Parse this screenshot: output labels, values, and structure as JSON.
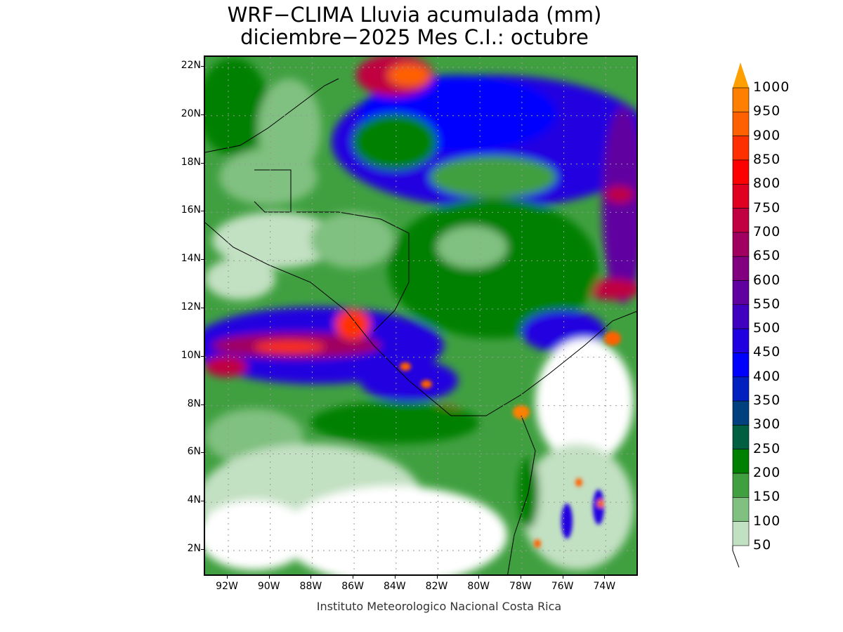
{
  "title": {
    "line1": "WRF−CLIMA Lluvia acumulada (mm)",
    "line2": "diciembre−2025 Mes C.I.: octubre"
  },
  "footer": "Instituto Meteorologico Nacional Costa Rica",
  "axes": {
    "lat_labels": [
      "22N",
      "20N",
      "18N",
      "16N",
      "14N",
      "12N",
      "10N",
      "8N",
      "6N",
      "4N",
      "2N"
    ],
    "lon_labels": [
      "92W",
      "90W",
      "88W",
      "86W",
      "84W",
      "82W",
      "80W",
      "78W",
      "76W",
      "74W"
    ]
  },
  "colorbar": {
    "unit": "mm",
    "labels": [
      "1000",
      "950",
      "900",
      "850",
      "800",
      "750",
      "700",
      "650",
      "600",
      "550",
      "500",
      "450",
      "400",
      "350",
      "300",
      "250",
      "200",
      "150",
      "100",
      "50"
    ],
    "colors_top_to_bottom": [
      "#ff8000",
      "#ff6000",
      "#ff3000",
      "#ff0000",
      "#e00020",
      "#c00040",
      "#a00060",
      "#800080",
      "#6000a0",
      "#4000c0",
      "#2000e0",
      "#0000ff",
      "#0020c0",
      "#00407f",
      "#005f40",
      "#008000",
      "#40a040",
      "#80c080",
      "#c2e0c2"
    ],
    "over_color": "#ffa000",
    "under_color": "#ffffff"
  }
}
